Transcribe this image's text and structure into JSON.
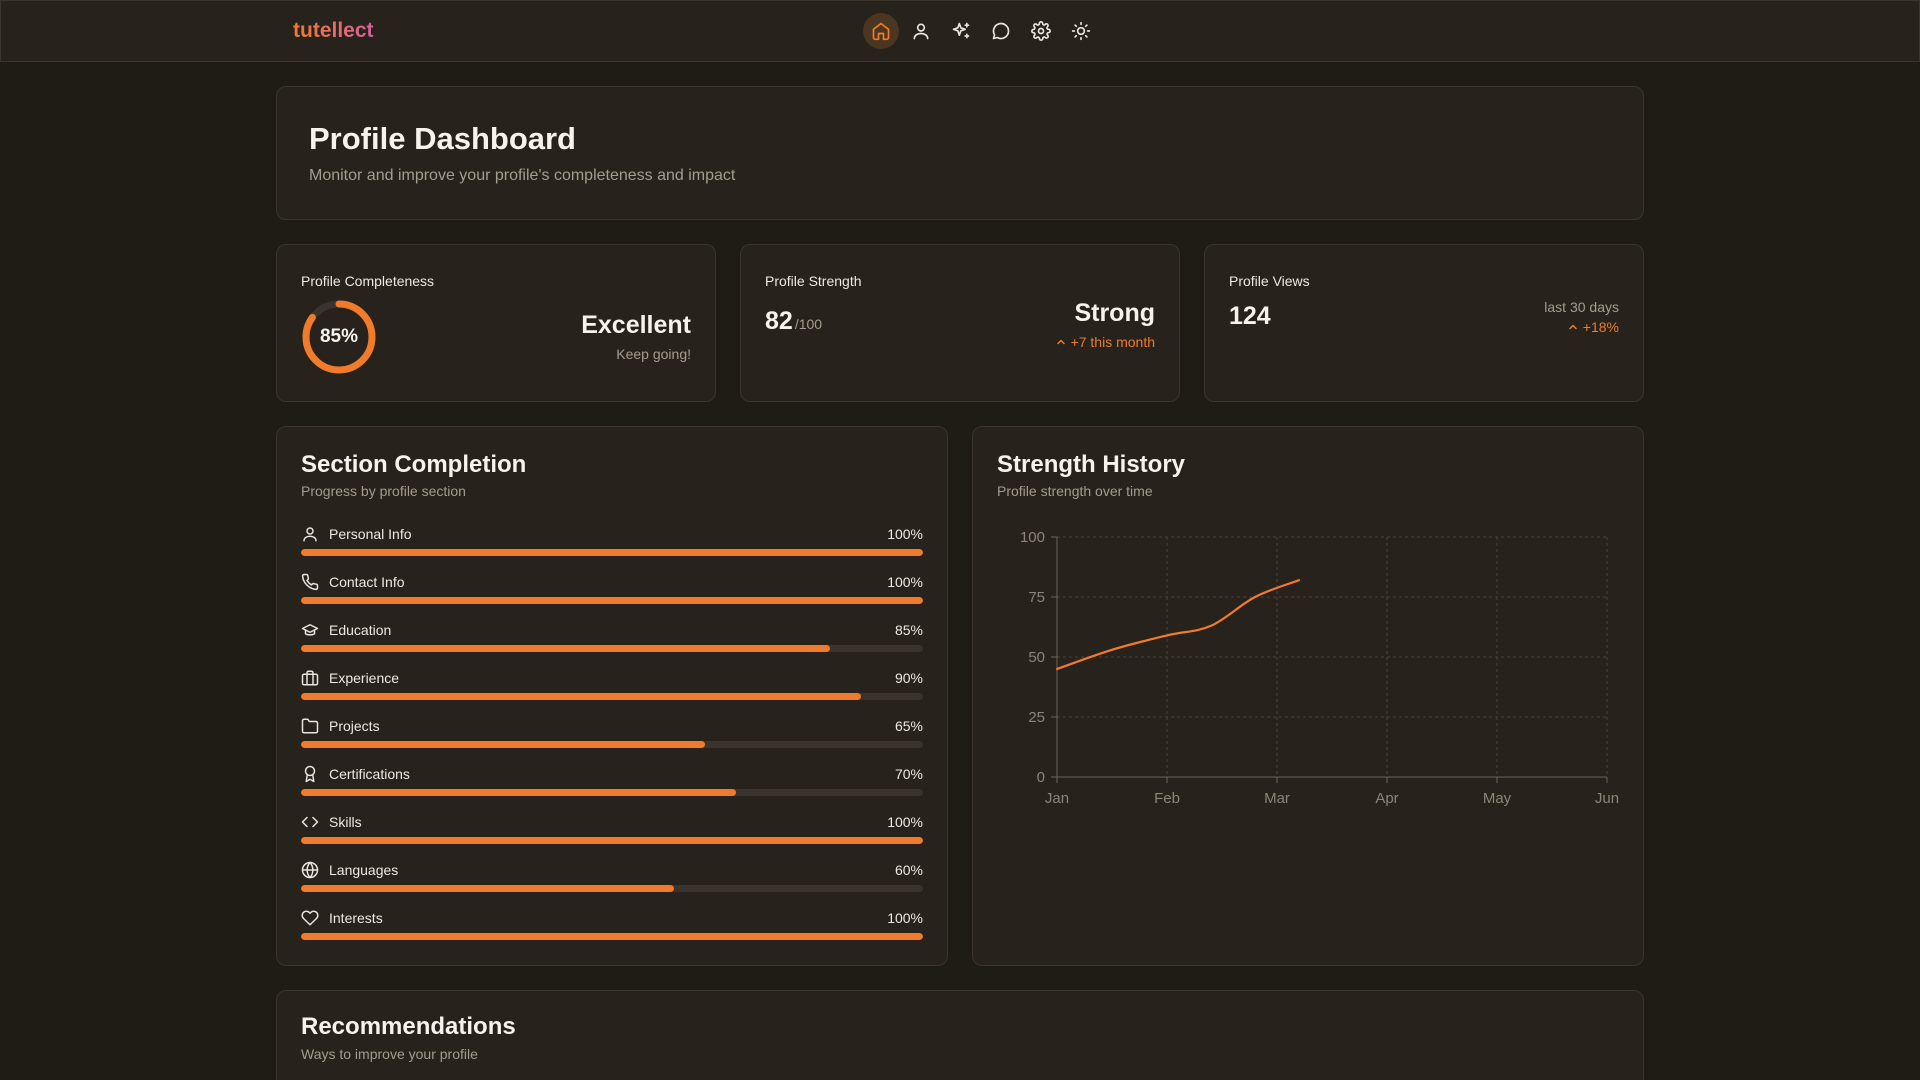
{
  "brand": "tutellect",
  "nav": [
    {
      "icon": "home-icon",
      "active": true
    },
    {
      "icon": "user-icon",
      "active": false
    },
    {
      "icon": "sparkles-icon",
      "active": false
    },
    {
      "icon": "chat-icon",
      "active": false
    },
    {
      "icon": "gear-icon",
      "active": false
    },
    {
      "icon": "sun-icon",
      "active": false
    }
  ],
  "header": {
    "title": "Profile Dashboard",
    "subtitle": "Monitor and improve your profile's completeness and impact"
  },
  "completeness": {
    "label": "Profile Completeness",
    "percent_text": "85%",
    "percent": 85,
    "rating": "Excellent",
    "note": "Keep going!"
  },
  "strength": {
    "label": "Profile Strength",
    "score": "82",
    "unit": "/100",
    "rating": "Strong",
    "change": "+7 this month"
  },
  "views": {
    "label": "Profile Views",
    "count": "124",
    "period": "last 30 days",
    "change": "+18%"
  },
  "sections": {
    "title": "Section Completion",
    "subtitle": "Progress by profile section",
    "items": [
      {
        "label": "Personal Info",
        "percent_text": "100%",
        "percent": 100,
        "icon": "user-icon"
      },
      {
        "label": "Contact Info",
        "percent_text": "100%",
        "percent": 100,
        "icon": "phone-icon"
      },
      {
        "label": "Education",
        "percent_text": "85%",
        "percent": 85,
        "icon": "graduation-cap-icon"
      },
      {
        "label": "Experience",
        "percent_text": "90%",
        "percent": 90,
        "icon": "briefcase-icon"
      },
      {
        "label": "Projects",
        "percent_text": "65%",
        "percent": 65,
        "icon": "folder-icon"
      },
      {
        "label": "Certifications",
        "percent_text": "70%",
        "percent": 70,
        "icon": "award-icon"
      },
      {
        "label": "Skills",
        "percent_text": "100%",
        "percent": 100,
        "icon": "code-icon"
      },
      {
        "label": "Languages",
        "percent_text": "60%",
        "percent": 60,
        "icon": "globe-icon"
      },
      {
        "label": "Interests",
        "percent_text": "100%",
        "percent": 100,
        "icon": "heart-icon"
      }
    ]
  },
  "history": {
    "title": "Strength History",
    "subtitle": "Profile strength over time"
  },
  "chart_data": {
    "type": "line",
    "categories": [
      "Jan",
      "Feb",
      "Mar",
      "Apr",
      "May",
      "Jun"
    ],
    "x": [
      0,
      0.5,
      1,
      1.4,
      1.8,
      2.2
    ],
    "values": [
      45,
      53,
      59,
      63,
      75,
      82
    ],
    "yticks": [
      "0",
      "25",
      "50",
      "75",
      "100"
    ],
    "ylim": [
      0,
      100
    ],
    "grid": true,
    "line_color": "#f07b2a"
  },
  "recommendations": {
    "title": "Recommendations",
    "subtitle": "Ways to improve your profile"
  }
}
